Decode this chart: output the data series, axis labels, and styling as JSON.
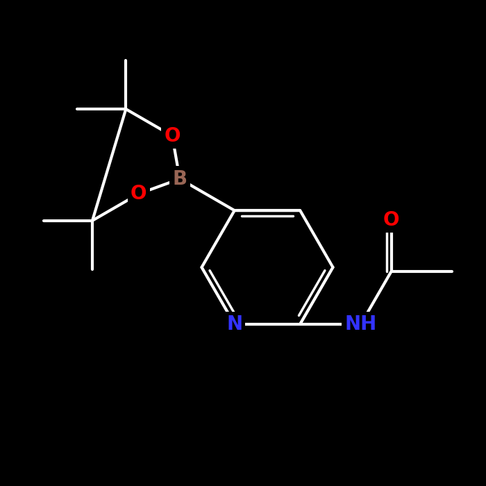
{
  "bg_color": "#000000",
  "bond_color": "#ffffff",
  "atom_colors": {
    "N": "#3333ff",
    "O": "#ff0000",
    "B": "#996655",
    "C": "#ffffff",
    "H": "#ffffff"
  },
  "figsize": [
    7.0,
    7.0
  ],
  "dpi": 100,
  "lw": 3.0,
  "lw_dbl": 2.5,
  "fs": 20
}
